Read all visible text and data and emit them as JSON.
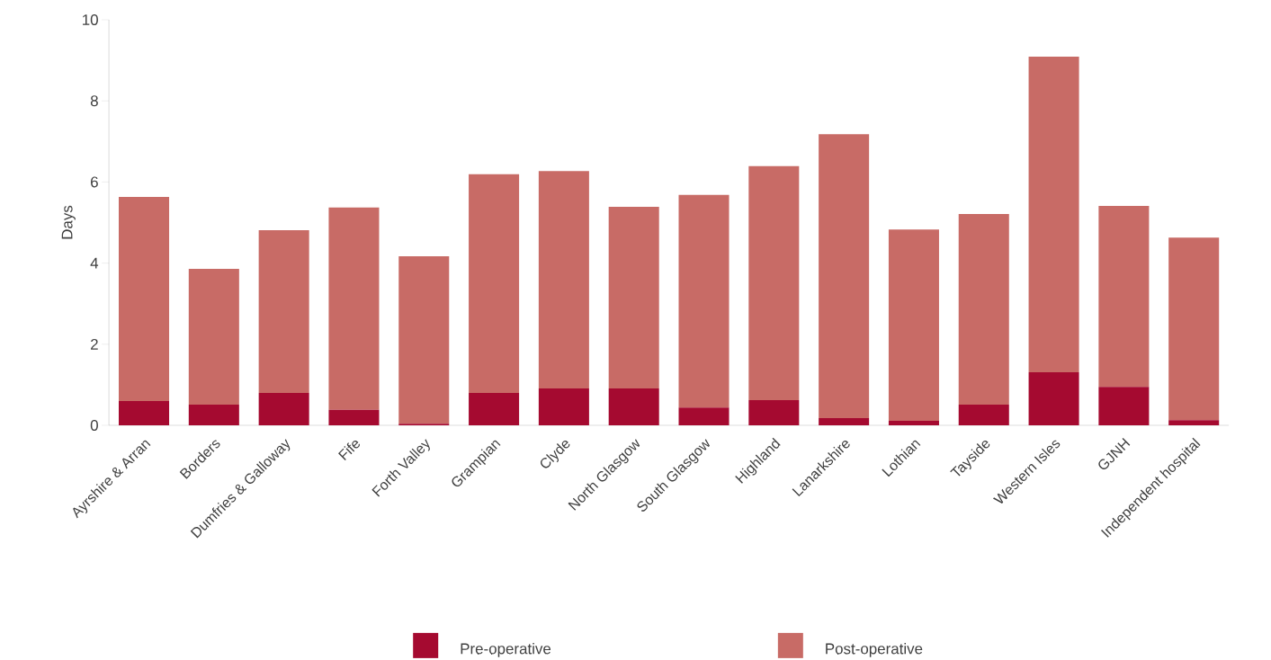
{
  "chart_data": {
    "type": "bar",
    "stacked": true,
    "ylabel": "Days",
    "categories": [
      "Ayrshire & Arran",
      "Borders",
      "Dumfries & Galloway",
      "Fife",
      "Forth Valley",
      "Grampian",
      "Clyde",
      "North Glasgow",
      "South Glasgow",
      "Highland",
      "Lanarkshire",
      "Lothian",
      "Tayside",
      "Western Isles",
      "GJNH",
      "Independent hospital"
    ],
    "series": [
      {
        "name": "Pre-operative",
        "color": "#a50a30",
        "values": [
          0.6,
          0.51,
          0.8,
          0.38,
          0.04,
          0.8,
          0.91,
          0.91,
          0.44,
          0.62,
          0.18,
          0.11,
          0.51,
          1.31,
          0.95,
          0.13
        ]
      },
      {
        "name": "Post-operative",
        "color": "#c86b66",
        "values": [
          5.03,
          3.35,
          4.01,
          4.99,
          4.13,
          5.39,
          5.36,
          4.48,
          5.24,
          5.77,
          7.0,
          4.72,
          4.7,
          7.78,
          4.46,
          4.5
        ]
      }
    ],
    "ylim": [
      0,
      10
    ],
    "yticks": [
      0,
      2,
      4,
      6,
      8,
      10
    ],
    "grid": false,
    "legend": "bottom"
  }
}
